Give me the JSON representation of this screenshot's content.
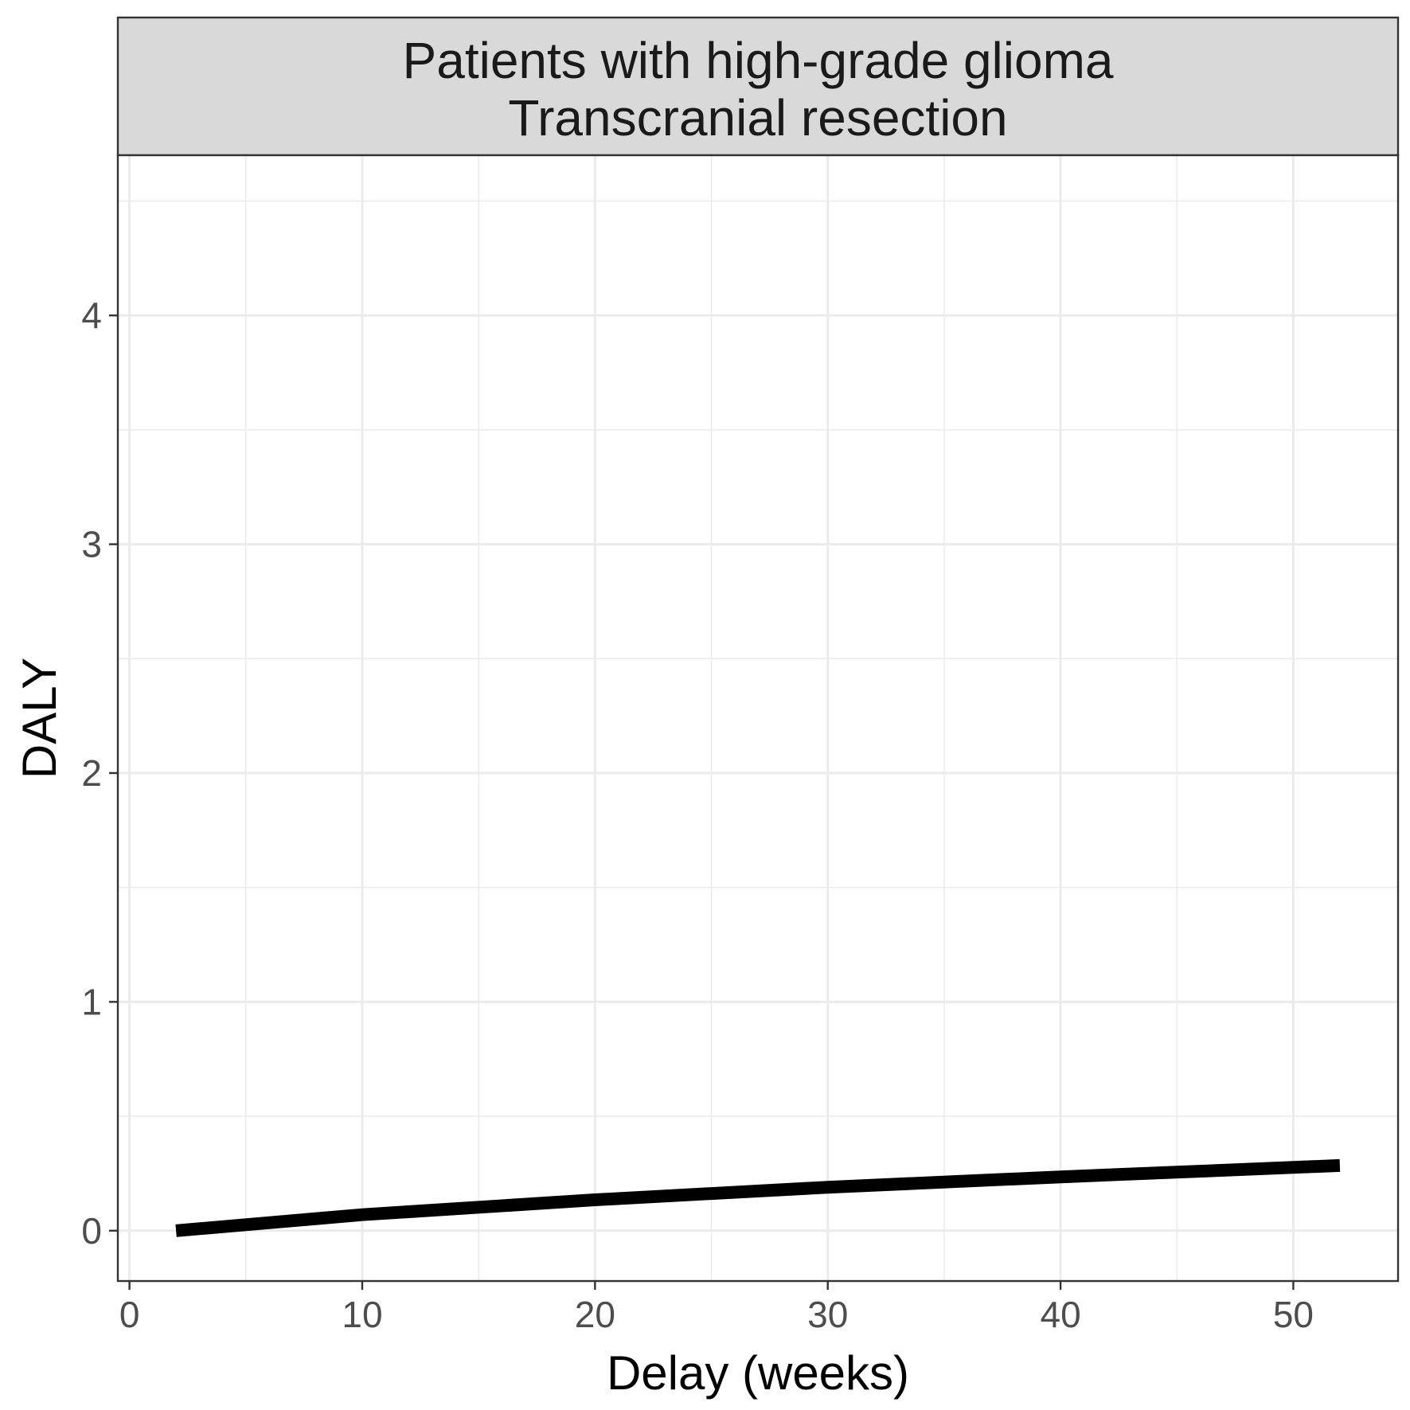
{
  "chart_data": {
    "type": "line",
    "facet_label_line1": "Patients with high-grade glioma",
    "facet_label_line2": "Transcranial resection",
    "xlabel": "Delay (weeks)",
    "ylabel": "DALY",
    "xlim": [
      -0.5,
      54.5
    ],
    "ylim": [
      -0.22,
      4.7
    ],
    "x_ticks": [
      0,
      10,
      20,
      30,
      40,
      50
    ],
    "x_tick_labels": [
      "0",
      "10",
      "20",
      "30",
      "40",
      "50"
    ],
    "y_ticks": [
      0,
      1,
      2,
      3,
      4
    ],
    "y_tick_labels": [
      "0",
      "1",
      "2",
      "3",
      "4"
    ],
    "x_minor": [
      5,
      15,
      25,
      35,
      45
    ],
    "y_minor": [
      0.5,
      1.5,
      2.5,
      3.5,
      4.5
    ],
    "grid": true,
    "series": [
      {
        "color": "#000000",
        "x": [
          2,
          10,
          20,
          30,
          40,
          52
        ],
        "y": [
          0.0,
          0.07,
          0.135,
          0.19,
          0.235,
          0.285
        ]
      }
    ]
  }
}
